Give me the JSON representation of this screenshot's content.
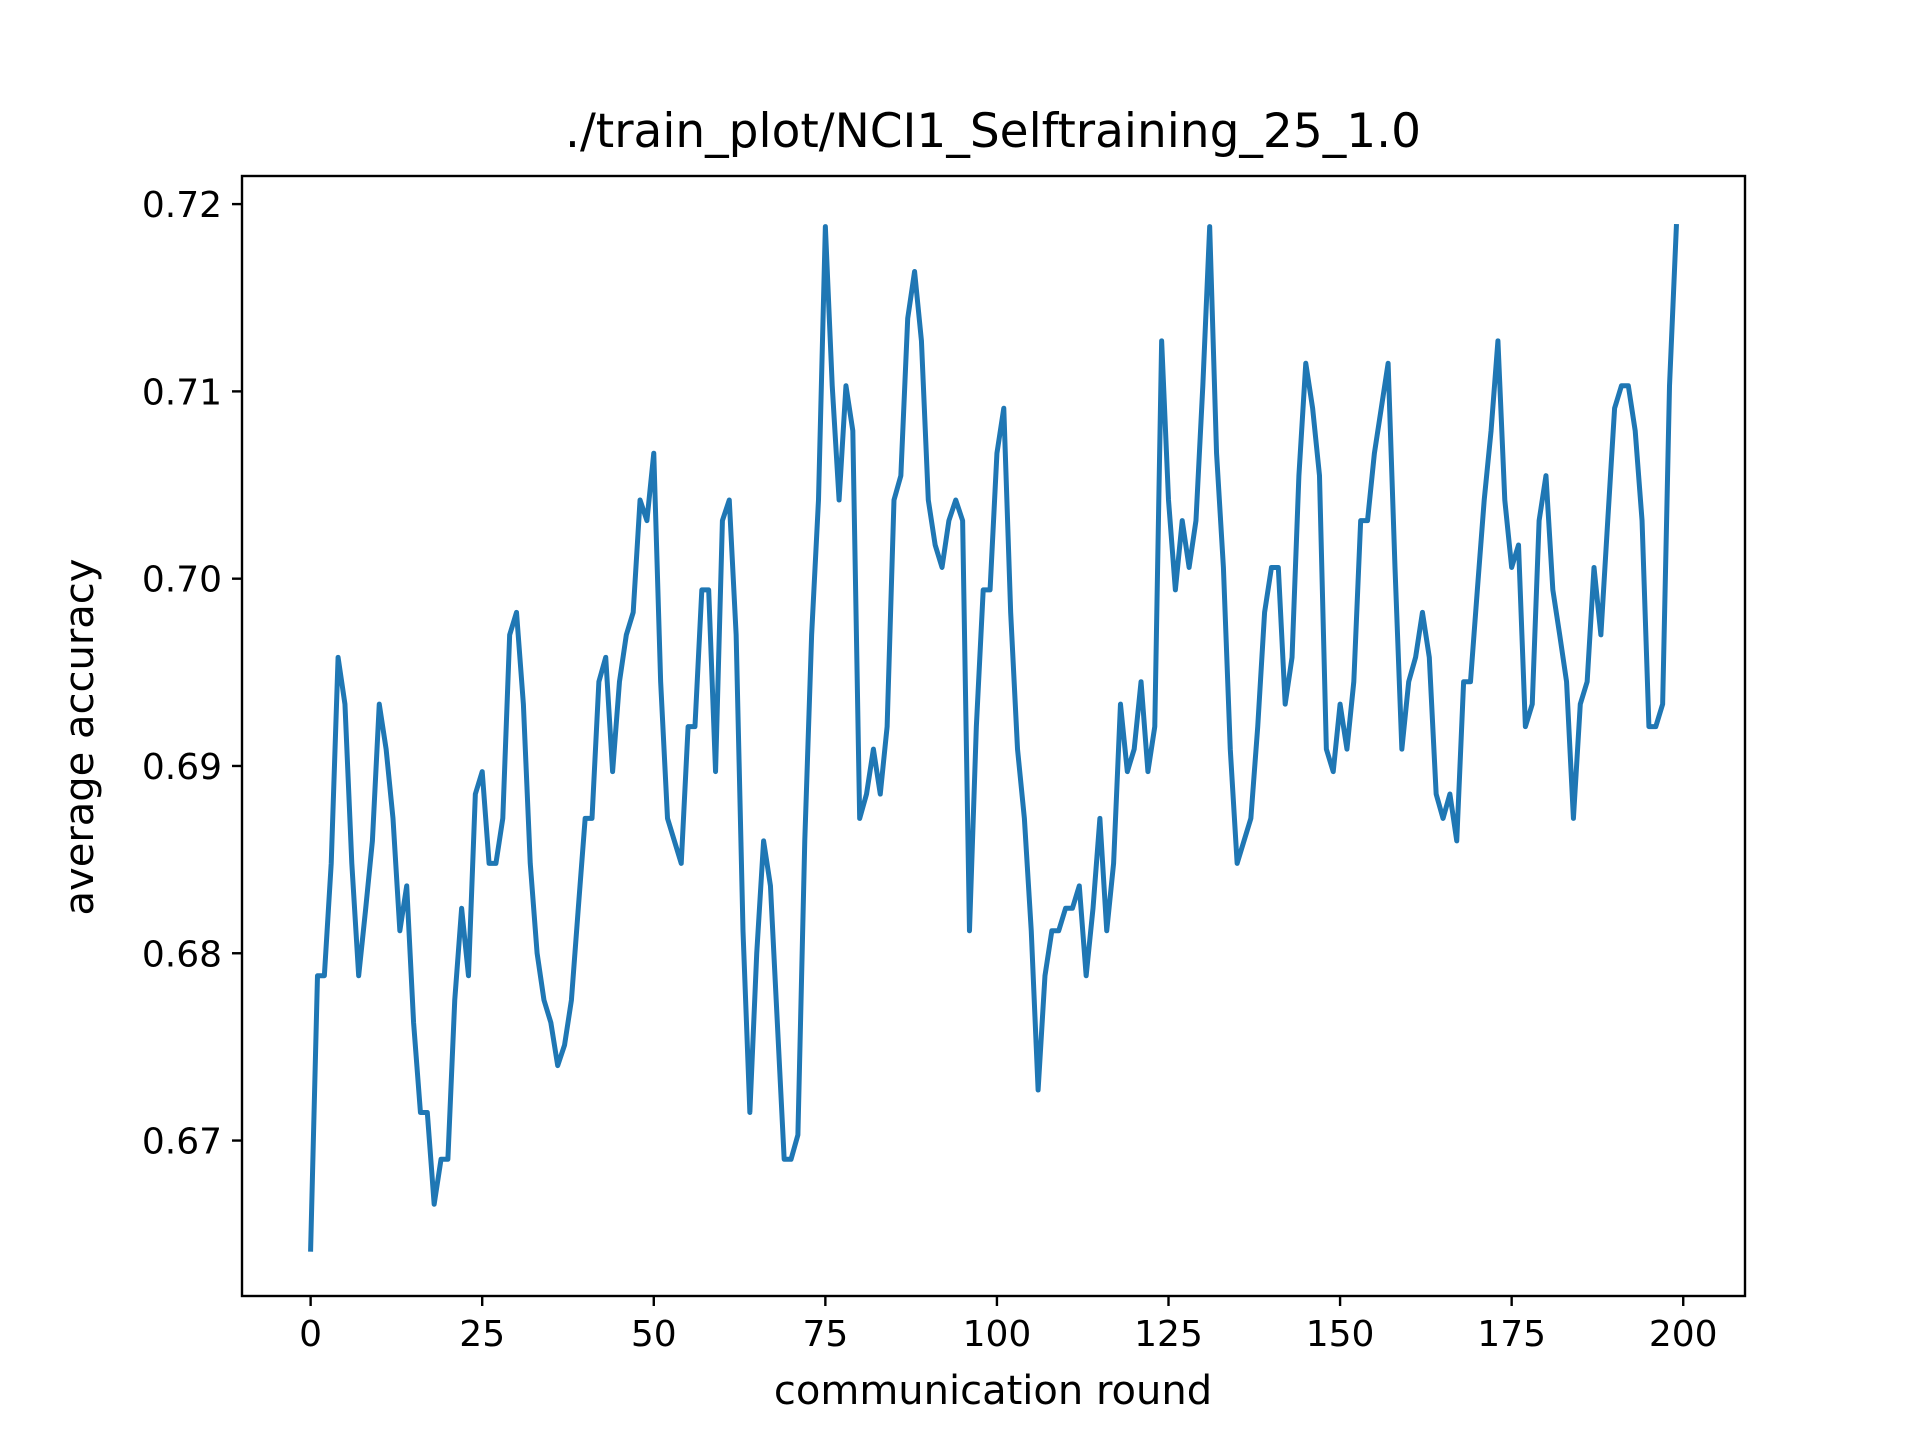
{
  "chart_data": {
    "type": "line",
    "title": "./train_plot/NCI1_Selftraining_25_1.0",
    "xlabel": "communication round",
    "ylabel": "average accuracy",
    "xlim": [
      -10,
      209
    ],
    "ylim": [
      0.6617,
      0.7215
    ],
    "xticks": [
      0,
      25,
      50,
      75,
      100,
      125,
      150,
      175,
      200
    ],
    "xtick_labels": [
      "0",
      "25",
      "50",
      "75",
      "100",
      "125",
      "150",
      "175",
      "200"
    ],
    "yticks": [
      0.67,
      0.68,
      0.69,
      0.7,
      0.71,
      0.72
    ],
    "ytick_labels": [
      "0.67",
      "0.68",
      "0.69",
      "0.70",
      "0.71",
      "0.72"
    ],
    "grid": false,
    "legend": "none",
    "series": [
      {
        "color": "#1f77b4",
        "x": [
          0,
          1,
          2,
          3,
          4,
          5,
          6,
          7,
          8,
          9,
          10,
          11,
          12,
          13,
          14,
          15,
          16,
          17,
          18,
          19,
          20,
          21,
          22,
          23,
          24,
          25,
          26,
          27,
          28,
          29,
          30,
          31,
          32,
          33,
          34,
          35,
          36,
          37,
          38,
          39,
          40,
          41,
          42,
          43,
          44,
          45,
          46,
          47,
          48,
          49,
          50,
          51,
          52,
          53,
          54,
          55,
          56,
          57,
          58,
          59,
          60,
          61,
          62,
          63,
          64,
          65,
          66,
          67,
          68,
          69,
          70,
          71,
          72,
          73,
          74,
          75,
          76,
          77,
          78,
          79,
          80,
          81,
          82,
          83,
          84,
          85,
          86,
          87,
          88,
          89,
          90,
          91,
          92,
          93,
          94,
          95,
          96,
          97,
          98,
          99,
          100,
          101,
          102,
          103,
          104,
          105,
          106,
          107,
          108,
          109,
          110,
          111,
          112,
          113,
          114,
          115,
          116,
          117,
          118,
          119,
          120,
          121,
          122,
          123,
          124,
          125,
          126,
          127,
          128,
          129,
          130,
          131,
          132,
          133,
          134,
          135,
          136,
          137,
          138,
          139,
          140,
          141,
          142,
          143,
          144,
          145,
          146,
          147,
          148,
          149,
          150,
          151,
          152,
          153,
          154,
          155,
          156,
          157,
          158,
          159,
          160,
          161,
          162,
          163,
          164,
          165,
          166,
          167,
          168,
          169,
          170,
          171,
          172,
          173,
          174,
          175,
          176,
          177,
          178,
          179,
          180,
          181,
          182,
          183,
          184,
          185,
          186,
          187,
          188,
          189,
          190,
          191,
          192,
          193,
          194,
          195,
          196,
          197,
          198,
          199
        ],
        "y": [
          0.6642,
          0.6788,
          0.6788,
          0.6848,
          0.6958,
          0.6933,
          0.6848,
          0.6788,
          0.6823,
          0.686,
          0.6933,
          0.6909,
          0.6872,
          0.6812,
          0.6836,
          0.6763,
          0.6715,
          0.6715,
          0.6666,
          0.669,
          0.669,
          0.6775,
          0.6824,
          0.6788,
          0.6885,
          0.6897,
          0.6848,
          0.6848,
          0.6872,
          0.697,
          0.6982,
          0.6933,
          0.6848,
          0.68,
          0.6775,
          0.6763,
          0.674,
          0.6751,
          0.6775,
          0.6824,
          0.6872,
          0.6872,
          0.6945,
          0.6958,
          0.6897,
          0.6945,
          0.697,
          0.6982,
          0.7042,
          0.7031,
          0.7067,
          0.6945,
          0.6872,
          0.686,
          0.6848,
          0.6921,
          0.6921,
          0.6994,
          0.6994,
          0.6897,
          0.7031,
          0.7042,
          0.697,
          0.6812,
          0.6715,
          0.68,
          0.686,
          0.6836,
          0.6763,
          0.669,
          0.669,
          0.6703,
          0.686,
          0.697,
          0.7042,
          0.7188,
          0.7103,
          0.7042,
          0.7103,
          0.7079,
          0.6872,
          0.6885,
          0.6909,
          0.6885,
          0.6921,
          0.7042,
          0.7055,
          0.7139,
          0.7164,
          0.7127,
          0.7042,
          0.7018,
          0.7006,
          0.7031,
          0.7042,
          0.7031,
          0.6812,
          0.6921,
          0.6994,
          0.6994,
          0.7067,
          0.7091,
          0.6982,
          0.6909,
          0.6872,
          0.6812,
          0.6727,
          0.6788,
          0.6812,
          0.6812,
          0.6824,
          0.6824,
          0.6836,
          0.6788,
          0.6824,
          0.6872,
          0.6812,
          0.6848,
          0.6933,
          0.6897,
          0.6909,
          0.6945,
          0.6897,
          0.6921,
          0.7127,
          0.7042,
          0.6994,
          0.7031,
          0.7006,
          0.7031,
          0.7103,
          0.7188,
          0.7067,
          0.7006,
          0.6909,
          0.6848,
          0.686,
          0.6872,
          0.6921,
          0.6982,
          0.7006,
          0.7006,
          0.6933,
          0.6958,
          0.7055,
          0.7115,
          0.7091,
          0.7055,
          0.6909,
          0.6897,
          0.6933,
          0.6909,
          0.6945,
          0.7031,
          0.7031,
          0.7067,
          0.7091,
          0.7115,
          0.7006,
          0.6909,
          0.6945,
          0.6958,
          0.6982,
          0.6958,
          0.6885,
          0.6872,
          0.6885,
          0.686,
          0.6945,
          0.6945,
          0.6994,
          0.7042,
          0.7079,
          0.7127,
          0.7042,
          0.7006,
          0.7018,
          0.6921,
          0.6933,
          0.7031,
          0.7055,
          0.6994,
          0.697,
          0.6945,
          0.6872,
          0.6933,
          0.6945,
          0.7006,
          0.697,
          0.7031,
          0.7091,
          0.7103,
          0.7103,
          0.7079,
          0.7031,
          0.6921,
          0.6921,
          0.6933,
          0.7103,
          0.7188
        ]
      }
    ]
  }
}
